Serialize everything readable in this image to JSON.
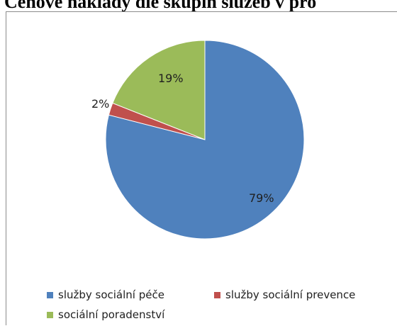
{
  "chart_data": {
    "type": "pie",
    "title": "Cenové náklady dle skupin služeb v pro",
    "categories": [
      "služby sociální péče",
      "služby sociální prevence",
      "sociální poradenství"
    ],
    "values": [
      79,
      2,
      19
    ],
    "labels": [
      "79%",
      "2%",
      "19%"
    ],
    "colors": [
      "#4f81bd",
      "#c0504d",
      "#9bbb59"
    ],
    "legend_position": "bottom"
  }
}
